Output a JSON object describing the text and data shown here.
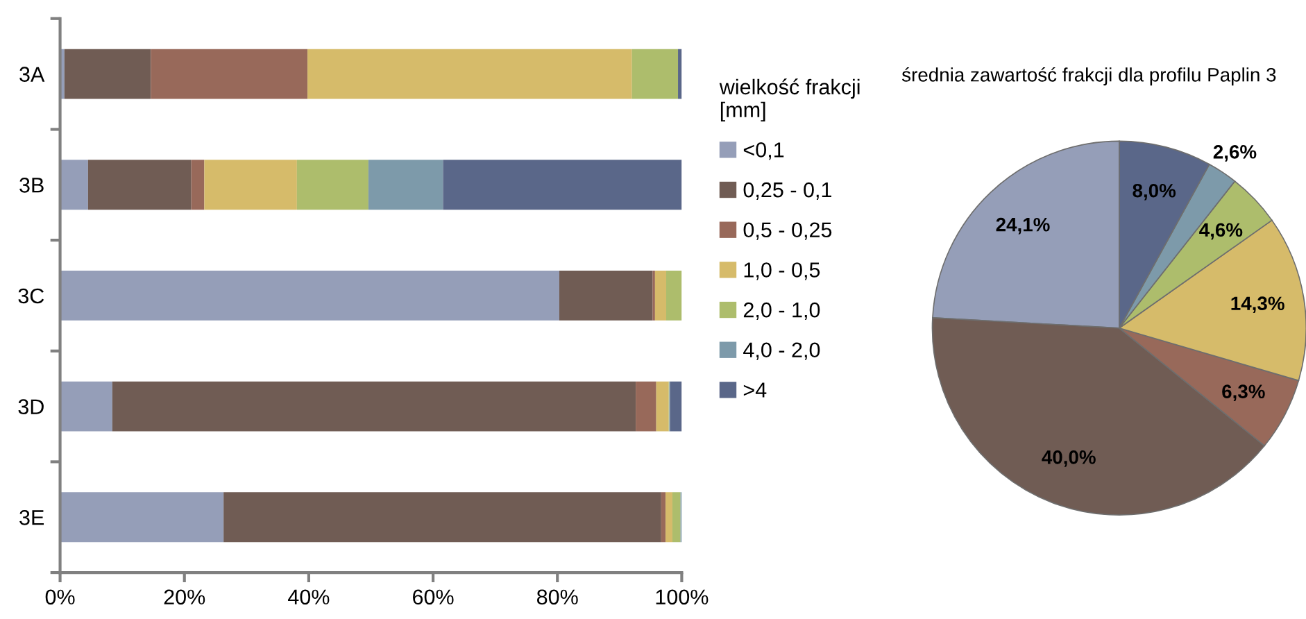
{
  "chart_data": [
    {
      "type": "bar",
      "orientation": "horizontal",
      "stacked": true,
      "categories": [
        "3A",
        "3B",
        "3C",
        "3D",
        "3E"
      ],
      "series": [
        {
          "name": "<0,1",
          "color": "#959eb8",
          "values": [
            0.7,
            4.5,
            80.3,
            8.4,
            26.3
          ]
        },
        {
          "name": "0,25 - 0,1",
          "color": "#705c54",
          "values": [
            13.9,
            16.6,
            15.0,
            84.2,
            70.4
          ]
        },
        {
          "name": "0,5 - 0,25",
          "color": "#98695a",
          "values": [
            25.2,
            2.1,
            0.4,
            3.3,
            0.7
          ]
        },
        {
          "name": "1,0 - 0,5",
          "color": "#d6bb6a",
          "values": [
            52.2,
            14.9,
            1.8,
            2.0,
            1.1
          ]
        },
        {
          "name": "2,0 - 1,0",
          "color": "#adbd6c",
          "values": [
            7.4,
            11.5,
            2.5,
            0.1,
            1.3
          ]
        },
        {
          "name": "4,0 - 2,0",
          "color": "#7d9aaa",
          "values": [
            0,
            12.0,
            0,
            0.1,
            0.2
          ]
        },
        {
          "name": ">4",
          "color": "#5a6789",
          "values": [
            0.6,
            38.4,
            0,
            1.9,
            0
          ]
        }
      ],
      "xlim": [
        0,
        100
      ],
      "xticks": [
        {
          "value": 0,
          "label": "0%"
        },
        {
          "value": 20,
          "label": "20%"
        },
        {
          "value": 40,
          "label": "40%"
        },
        {
          "value": 60,
          "label": "60%"
        },
        {
          "value": 80,
          "label": "80%"
        },
        {
          "value": 100,
          "label": "100%"
        }
      ],
      "grid": false,
      "legend": "right",
      "legend_title": "wielkość frakcji\n[mm]"
    },
    {
      "type": "pie",
      "title": "średnia zawartość frakcji dla profilu Paplin 3",
      "categories": [
        null,
        null,
        null,
        null,
        null,
        null,
        null
      ],
      "values": [
        24.1,
        40.0,
        6.3,
        14.3,
        4.6,
        2.6,
        8.0
      ],
      "colors": [
        "#959eb8",
        "#705c54",
        "#98695a",
        "#d6bb6a",
        "#adbd6c",
        "#7d9aaa",
        "#5a6789"
      ],
      "value_labels": [
        "24,1%",
        "40,0%",
        "6,3%",
        "14,3%",
        "4,6%",
        "2,6%",
        "8,0%"
      ]
    }
  ]
}
